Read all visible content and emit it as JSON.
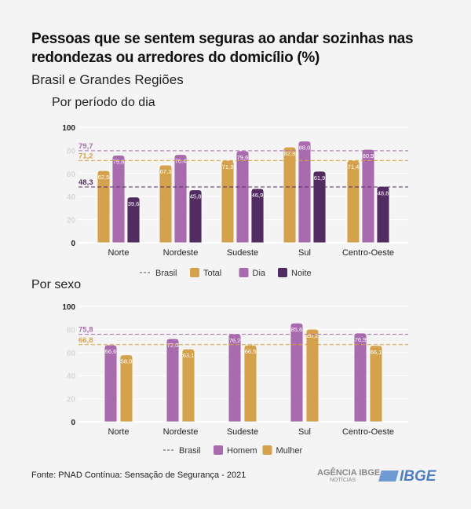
{
  "title": "Pessoas que se sentem seguras ao andar sozinhas nas redondezas ou arredores do domicílio (%)",
  "subtitle": "Brasil e Grandes Regiões",
  "source": "Fonte: PNAD Contínua: Sensação de Segurança - 2021",
  "logos": {
    "agencia": "AGÊNCIA IBGE",
    "agencia_sub": "NOTÍCIAS",
    "ibge": "IBGE"
  },
  "chart_data": [
    {
      "type": "bar",
      "title": "Por período do dia",
      "categories": [
        "Norte",
        "Nordeste",
        "Sudeste",
        "Sul",
        "Centro-Oeste"
      ],
      "ylim": [
        0,
        100
      ],
      "yticks": [
        0,
        20,
        40,
        60,
        80,
        100
      ],
      "grid": true,
      "legend_position": "bottom",
      "series": [
        {
          "name": "Total",
          "color": "#D4A24C",
          "values": [
            62.5,
            67.3,
            71.3,
            82.9,
            71.4
          ],
          "brasil": 71.2
        },
        {
          "name": "Dia",
          "color": "#A86BAD",
          "values": [
            75.8,
            76.4,
            79.6,
            88.0,
            80.9
          ],
          "brasil": 79.7
        },
        {
          "name": "Noite",
          "color": "#522C60",
          "values": [
            39.6,
            45.8,
            46.9,
            61.9,
            48.8
          ],
          "brasil": 48.3
        }
      ],
      "reference_label": "Brasil"
    },
    {
      "type": "bar",
      "title": "Por sexo",
      "categories": [
        "Norte",
        "Nordeste",
        "Sudeste",
        "Sul",
        "Centro-Oeste"
      ],
      "ylim": [
        0,
        100
      ],
      "yticks": [
        0,
        20,
        40,
        60,
        80,
        100
      ],
      "grid": true,
      "legend_position": "bottom",
      "series": [
        {
          "name": "Homem",
          "color": "#A86BAD",
          "values": [
            66.6,
            72.0,
            76.2,
            85.6,
            76.9
          ],
          "brasil": 75.8
        },
        {
          "name": "Mulher",
          "color": "#D4A24C",
          "values": [
            58.0,
            63.1,
            66.5,
            80.2,
            66.1
          ],
          "brasil": 66.8
        }
      ],
      "reference_label": "Brasil"
    }
  ]
}
